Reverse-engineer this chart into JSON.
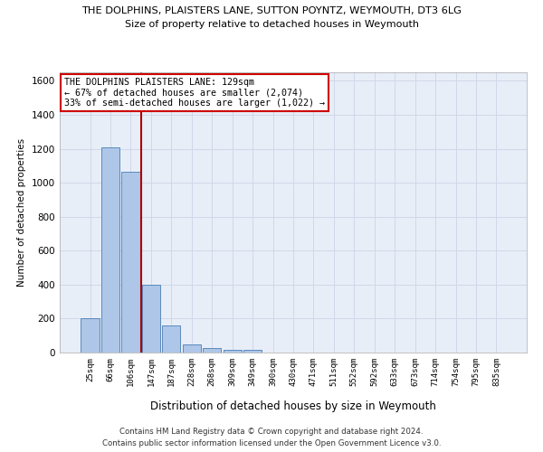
{
  "title": "THE DOLPHINS, PLAISTERS LANE, SUTTON POYNTZ, WEYMOUTH, DT3 6LG",
  "subtitle": "Size of property relative to detached houses in Weymouth",
  "xlabel": "Distribution of detached houses by size in Weymouth",
  "ylabel": "Number of detached properties",
  "bar_labels": [
    "25sqm",
    "66sqm",
    "106sqm",
    "147sqm",
    "187sqm",
    "228sqm",
    "268sqm",
    "309sqm",
    "349sqm",
    "390sqm",
    "430sqm",
    "471sqm",
    "511sqm",
    "552sqm",
    "592sqm",
    "633sqm",
    "673sqm",
    "714sqm",
    "754sqm",
    "795sqm",
    "835sqm"
  ],
  "bar_values": [
    200,
    1210,
    1065,
    400,
    160,
    47,
    25,
    15,
    15,
    0,
    0,
    0,
    0,
    0,
    0,
    0,
    0,
    0,
    0,
    0,
    0
  ],
  "bar_color": "#aec6e8",
  "bar_edge_color": "#4a7db5",
  "ylim": [
    0,
    1650
  ],
  "yticks": [
    0,
    200,
    400,
    600,
    800,
    1000,
    1200,
    1400,
    1600
  ],
  "grid_color": "#d0d8e8",
  "background_color": "#e8eef8",
  "vline_x_index": 2.5,
  "vline_color": "#aa0000",
  "annotation_text": "THE DOLPHINS PLAISTERS LANE: 129sqm\n← 67% of detached houses are smaller (2,074)\n33% of semi-detached houses are larger (1,022) →",
  "annotation_box_color": "#ffffff",
  "annotation_box_edge": "#cc0000",
  "footer_line1": "Contains HM Land Registry data © Crown copyright and database right 2024.",
  "footer_line2": "Contains public sector information licensed under the Open Government Licence v3.0."
}
